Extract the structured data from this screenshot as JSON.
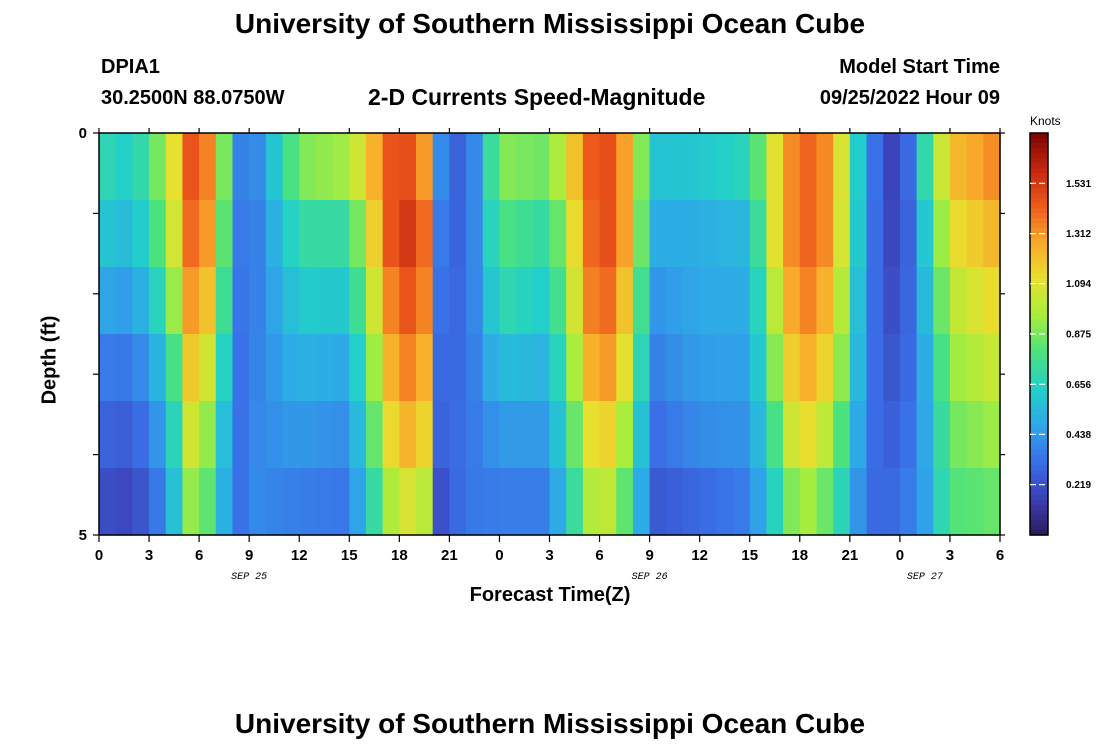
{
  "header": {
    "title": "University of Southern Mississippi Ocean Cube",
    "station": "DPIA1",
    "coords": "30.2500N  88.0750W",
    "plot_title": "2-D Currents Speed-Magnitude",
    "start_label": "Model Start Time",
    "start_value": "09/25/2022 Hour 09"
  },
  "footer": {
    "title": "University of Southern Mississippi Ocean Cube"
  },
  "chart_data": {
    "type": "heatmap",
    "title": "2-D Currents Speed-Magnitude",
    "xlabel": "Forecast Time(Z)",
    "ylabel": "Depth (ft)",
    "ylim": [
      0,
      5
    ],
    "y_ticks": [
      "0",
      "5"
    ],
    "x_ticks": [
      "0",
      "3",
      "6",
      "9",
      "12",
      "15",
      "18",
      "21",
      "0",
      "3",
      "6",
      "9",
      "12",
      "15",
      "18",
      "21",
      "0",
      "3",
      "6"
    ],
    "date_labels": [
      {
        "label": "SEP 25",
        "at_tick": 3
      },
      {
        "label": "SEP 26",
        "at_tick": 11
      },
      {
        "label": "SEP 27",
        "at_tick": 16.5
      }
    ],
    "colorbar": {
      "unit": "Knots",
      "ticks": [
        1.531,
        1.312,
        1.094,
        0.875,
        0.656,
        0.438,
        0.219
      ],
      "range": [
        0.0,
        1.75
      ],
      "colors": [
        "#2e1a5c",
        "#3b3fb5",
        "#3a6fe8",
        "#2ea8e8",
        "#22d0c9",
        "#4be27e",
        "#a8ed3d",
        "#e8e02e",
        "#f9a92a",
        "#ee5a1c",
        "#c4260f",
        "#7a0403"
      ]
    },
    "hours_per_column": 1,
    "depth_rows": 6,
    "time_start_hour": 0,
    "time_end_hour": 54,
    "anchor_profile": [
      [
        0,
        0.7,
        0.6,
        0.48,
        0.36,
        0.28,
        0.22
      ],
      [
        2,
        0.62,
        0.54,
        0.44,
        0.34,
        0.26,
        0.18
      ],
      [
        4,
        0.95,
        0.88,
        0.74,
        0.58,
        0.48,
        0.4
      ],
      [
        5.5,
        1.45,
        1.4,
        1.3,
        1.18,
        1.05,
        0.92
      ],
      [
        7,
        1.3,
        1.25,
        1.15,
        1.0,
        0.85,
        0.78
      ],
      [
        8,
        0.45,
        0.4,
        0.35,
        0.3,
        0.27,
        0.25
      ],
      [
        9,
        0.3,
        0.3,
        0.32,
        0.35,
        0.38,
        0.4
      ],
      [
        12,
        0.88,
        0.72,
        0.62,
        0.52,
        0.44,
        0.36
      ],
      [
        15,
        0.95,
        0.72,
        0.6,
        0.48,
        0.4,
        0.34
      ],
      [
        18,
        1.55,
        1.6,
        1.5,
        1.4,
        1.28,
        1.1
      ],
      [
        19.5,
        1.3,
        1.4,
        1.35,
        1.25,
        1.15,
        1.0
      ],
      [
        20.5,
        0.4,
        0.35,
        0.32,
        0.3,
        0.28,
        0.22
      ],
      [
        22,
        0.22,
        0.25,
        0.28,
        0.3,
        0.32,
        0.34
      ],
      [
        24,
        0.9,
        0.8,
        0.7,
        0.56,
        0.44,
        0.36
      ],
      [
        27,
        0.85,
        0.7,
        0.62,
        0.52,
        0.44,
        0.36
      ],
      [
        30,
        1.55,
        1.55,
        1.5,
        1.4,
        1.25,
        1.1
      ],
      [
        32,
        1.2,
        1.2,
        1.1,
        1.0,
        0.86,
        0.74
      ],
      [
        33,
        0.58,
        0.5,
        0.42,
        0.36,
        0.3,
        0.24
      ],
      [
        36,
        0.6,
        0.5,
        0.48,
        0.45,
        0.4,
        0.3
      ],
      [
        39,
        0.68,
        0.55,
        0.5,
        0.46,
        0.42,
        0.36
      ],
      [
        40.5,
        1.1,
        1.1,
        1.0,
        0.9,
        0.78,
        0.66
      ],
      [
        42,
        1.45,
        1.45,
        1.4,
        1.3,
        1.18,
        1.0
      ],
      [
        44,
        1.3,
        1.3,
        1.2,
        1.1,
        0.95,
        0.8
      ],
      [
        46,
        0.4,
        0.38,
        0.36,
        0.35,
        0.33,
        0.3
      ],
      [
        48,
        0.1,
        0.12,
        0.16,
        0.2,
        0.25,
        0.3
      ],
      [
        49.5,
        0.7,
        0.6,
        0.55,
        0.5,
        0.48,
        0.46
      ],
      [
        51,
        1.2,
        1.1,
        1.0,
        0.92,
        0.85,
        0.8
      ],
      [
        54,
        1.35,
        1.25,
        1.15,
        1.05,
        0.95,
        0.85
      ]
    ]
  }
}
